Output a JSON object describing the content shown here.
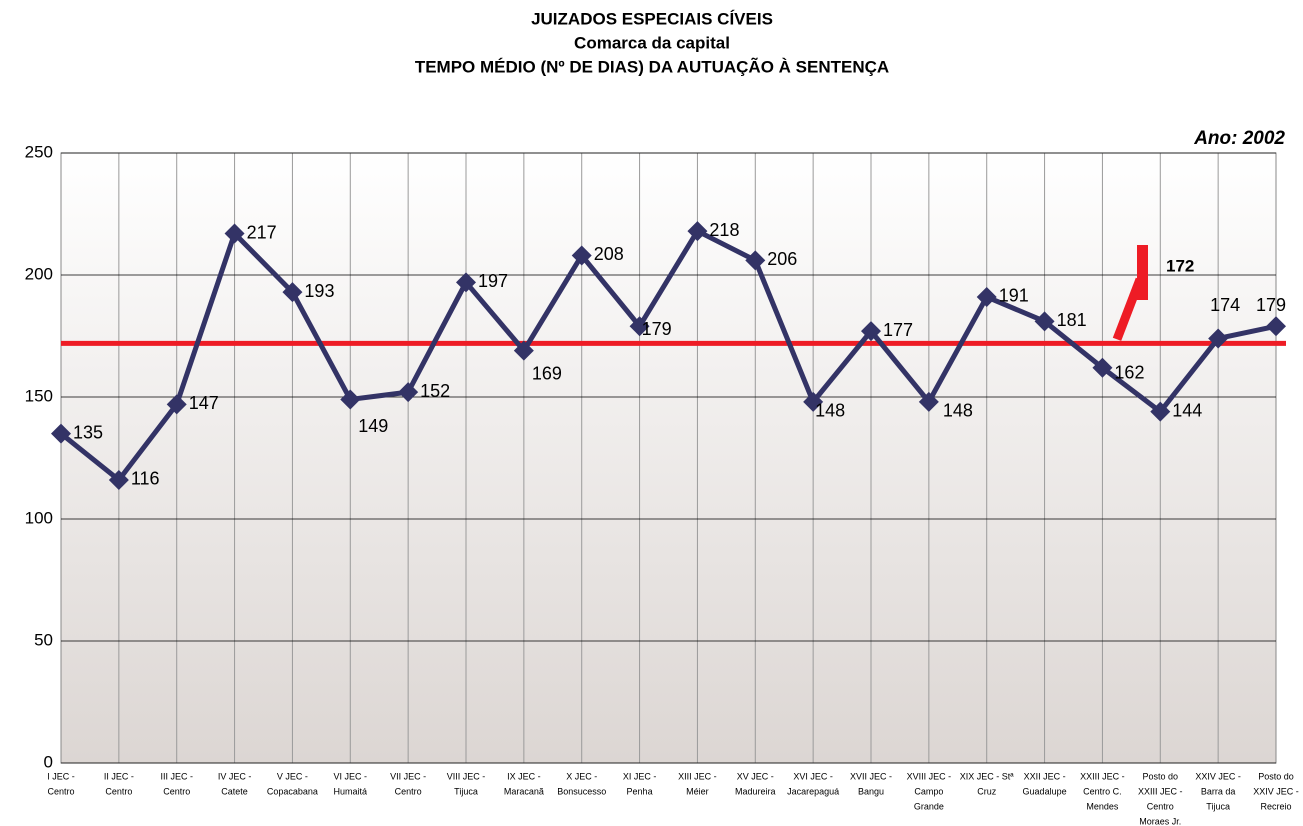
{
  "chart_data": {
    "type": "line",
    "title": [
      "JUIZADOS ESPECIAIS CÍVEIS",
      "Comarca da capital",
      "TEMPO MÉDIO (Nº DE DIAS) DA AUTUAÇÃO À SENTENÇA"
    ],
    "annotation": "Ano: 2002",
    "categories": [
      [
        "I JEC -",
        "Centro"
      ],
      [
        "II JEC -",
        "Centro"
      ],
      [
        "III JEC -",
        "Centro"
      ],
      [
        "IV JEC -",
        "Catete"
      ],
      [
        "V JEC -",
        "Copacabana"
      ],
      [
        "VI JEC -",
        "Humaitá"
      ],
      [
        "VII JEC -",
        "Centro"
      ],
      [
        "VIII JEC -",
        "Tijuca"
      ],
      [
        "IX JEC -",
        "Maracanã"
      ],
      [
        "X JEC -",
        "Bonsucesso"
      ],
      [
        "XI JEC -",
        "Penha"
      ],
      [
        "XIII JEC -",
        "Méier"
      ],
      [
        "XV JEC -",
        "Madureira"
      ],
      [
        "XVI JEC -",
        "Jacarepaguá"
      ],
      [
        "XVII JEC -",
        "Bangu"
      ],
      [
        "XVIII JEC -",
        "Campo",
        "Grande"
      ],
      [
        "XIX JEC - Stª",
        "Cruz"
      ],
      [
        "XXII JEC -",
        "Guadalupe"
      ],
      [
        "XXIII JEC -",
        "Centro C.",
        "Mendes"
      ],
      [
        "Posto do",
        "XXIII JEC -",
        "Centro",
        "Moraes Jr."
      ],
      [
        "XXIV JEC -",
        "Barra da",
        "Tijuca"
      ],
      [
        "Posto do",
        "XXIV JEC -",
        "Recreio"
      ]
    ],
    "series": [
      {
        "color": "#333366",
        "values": [
          135,
          116,
          147,
          217,
          193,
          149,
          152,
          197,
          169,
          208,
          179,
          218,
          206,
          148,
          177,
          148,
          191,
          181,
          162,
          144,
          174,
          179
        ]
      }
    ],
    "reference_line": {
      "value": 172,
      "color": "#ee1c25"
    },
    "ylim": [
      0,
      250
    ],
    "yticks": [
      0,
      50,
      100,
      150,
      200,
      250
    ],
    "grid": true
  }
}
